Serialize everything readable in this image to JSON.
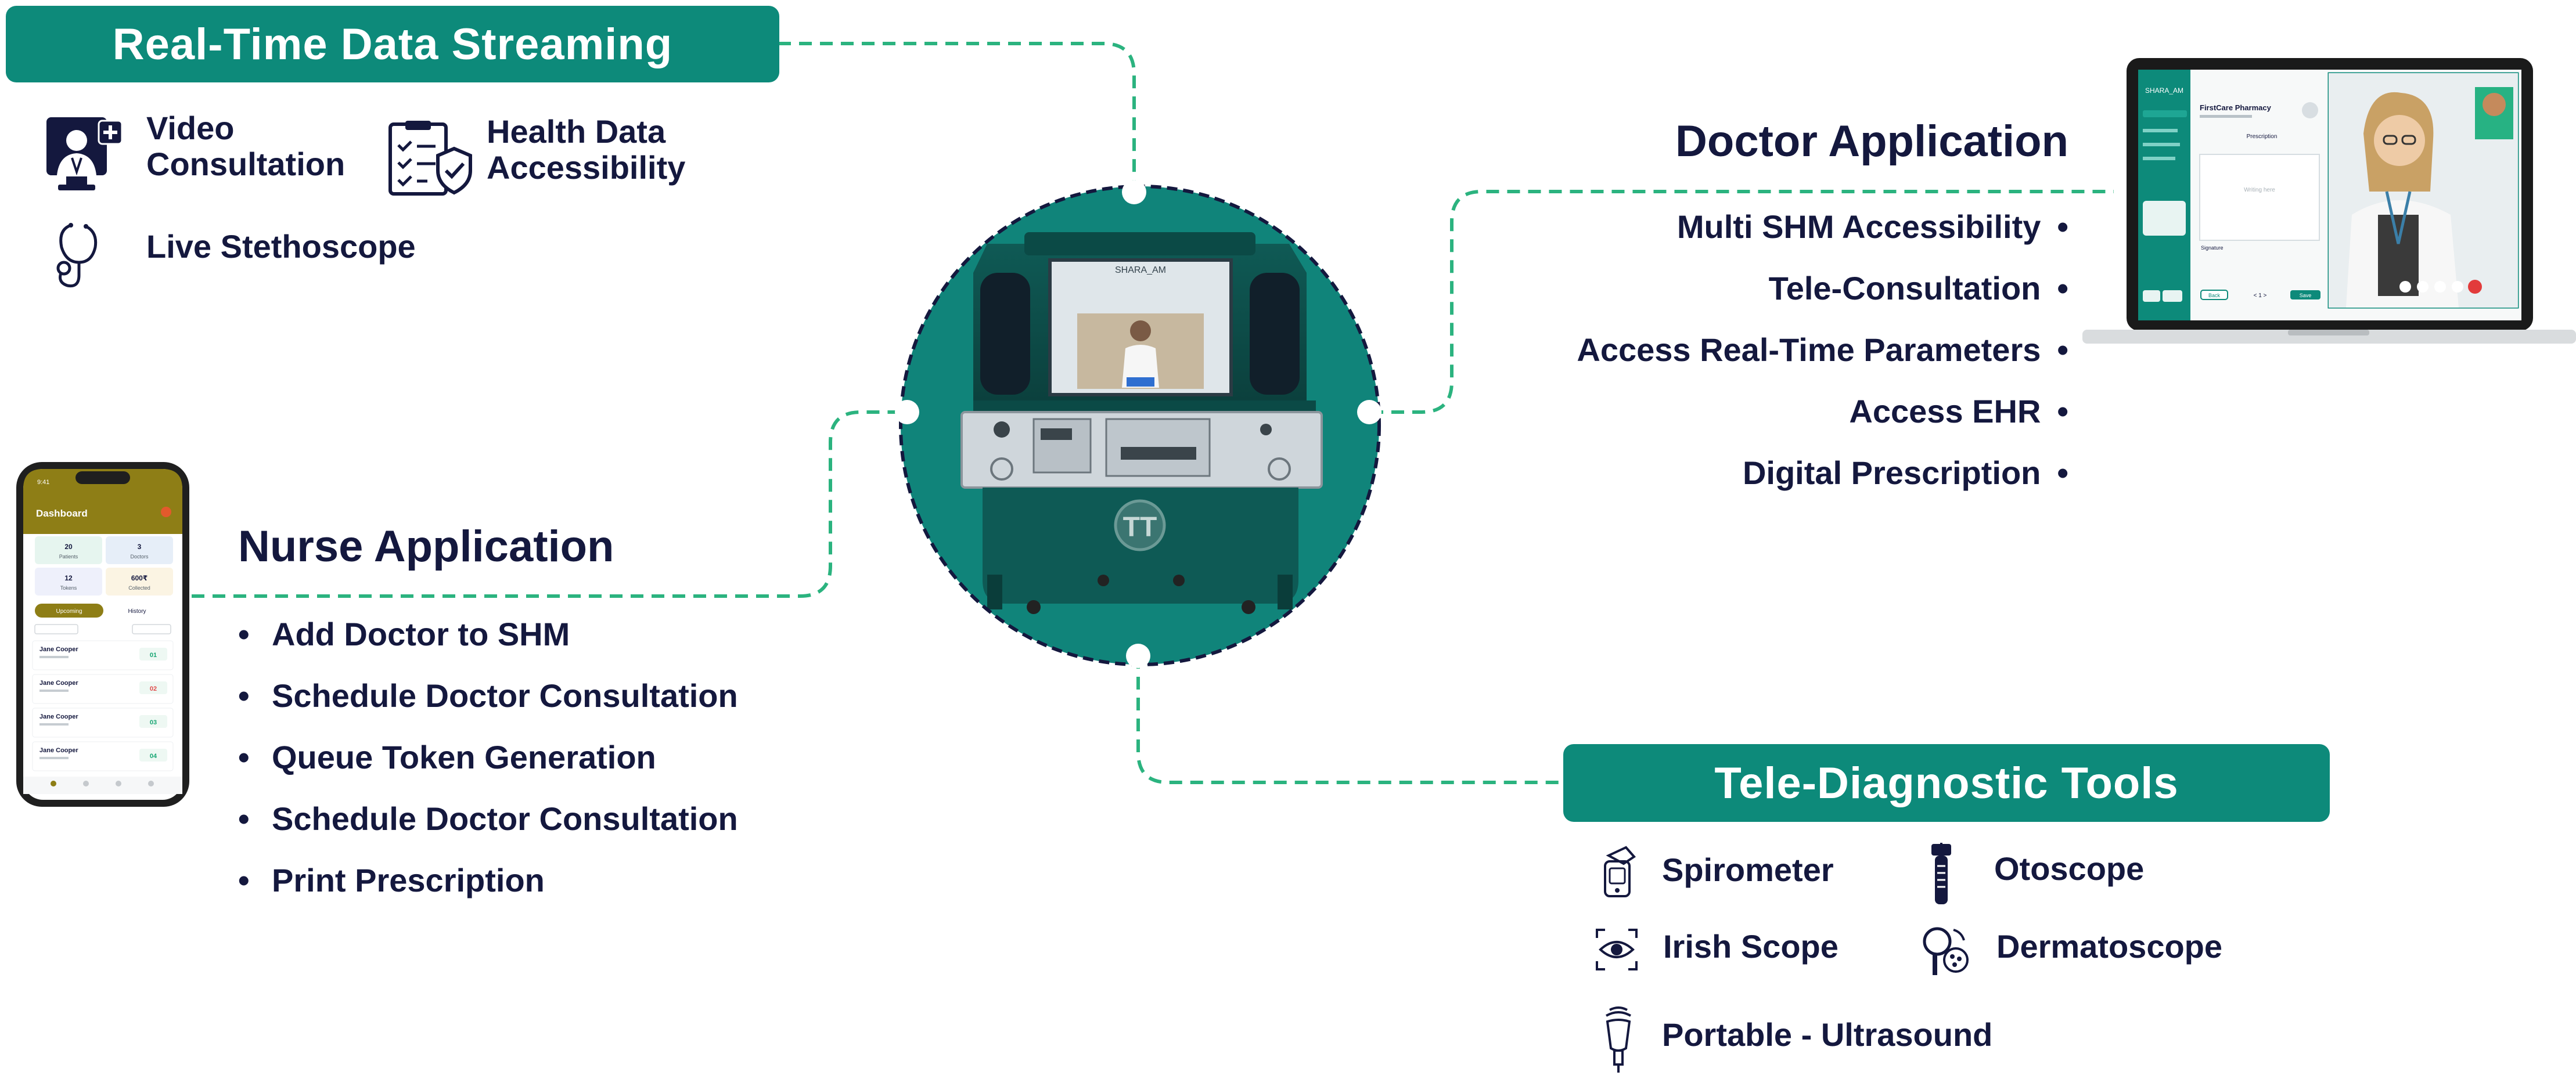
{
  "colors": {
    "teal": "#0d8a7a",
    "navy": "#14183e",
    "dashed_line": "#2bb37f",
    "circle_border": "#14183e"
  },
  "top_left": {
    "banner": "Real-Time Data Streaming",
    "features": [
      {
        "label_line1": "Video",
        "label_line2": "Consultation",
        "icon": "doctor-monitor-icon"
      },
      {
        "label_line1": "Health Data",
        "label_line2": "Accessibility",
        "icon": "clipboard-shield-icon"
      },
      {
        "label": "Live Stethoscope",
        "icon": "stethoscope-icon"
      }
    ]
  },
  "doctor_app": {
    "heading": "Doctor Application",
    "items": [
      "Multi SHM Accessibility",
      "Tele-Consultation",
      "Access Real-Time Parameters",
      "Access EHR",
      "Digital Prescription"
    ],
    "laptop_screen": {
      "brand": "SHARA_AM",
      "pharmacy": "FirstCare Pharmacy",
      "section": "Prescription",
      "placeholder": "Writing here",
      "signature_label": "Signature",
      "page_indicator": "< 1 >",
      "back_button": "Back",
      "save_button": "Save"
    }
  },
  "nurse_app": {
    "heading": "Nurse Application",
    "items": [
      "Add Doctor to SHM",
      "Schedule Doctor Consultation",
      "Queue Token Generation",
      "Schedule Doctor Consultation",
      "Print Prescription"
    ],
    "phone_screen": {
      "time": "9:41",
      "title": "Dashboard",
      "stats": [
        {
          "value": "20",
          "label": "Patients"
        },
        {
          "value": "3",
          "label": "Doctors"
        },
        {
          "value": "12",
          "label": "Tokens"
        },
        {
          "value": "600₹",
          "label": "Collected"
        }
      ],
      "tabs": [
        "Upcoming",
        "History"
      ],
      "patients": [
        {
          "name": "Jane Cooper",
          "token": "01",
          "token_color": "#17a673"
        },
        {
          "name": "Jane Cooper",
          "token": "02",
          "token_color": "#e14b4b"
        },
        {
          "name": "Jane Cooper",
          "token": "03",
          "token_color": "#17a673"
        },
        {
          "name": "Jane Cooper",
          "token": "04",
          "token_color": "#17a673"
        }
      ]
    }
  },
  "tele_diagnostic": {
    "banner": "Tele-Diagnostic Tools",
    "tools": [
      {
        "label": "Spirometer",
        "icon": "spirometer-icon"
      },
      {
        "label": "Otoscope",
        "icon": "otoscope-icon"
      },
      {
        "label": "Irish Scope",
        "icon": "eye-scope-icon"
      },
      {
        "label": "Dermatoscope",
        "icon": "dermatoscope-icon"
      },
      {
        "label": "Portable - Ultrasound",
        "icon": "ultrasound-probe-icon"
      }
    ]
  },
  "kiosk": {
    "logo": "TT",
    "screen_brand": "SHARA_AM"
  }
}
